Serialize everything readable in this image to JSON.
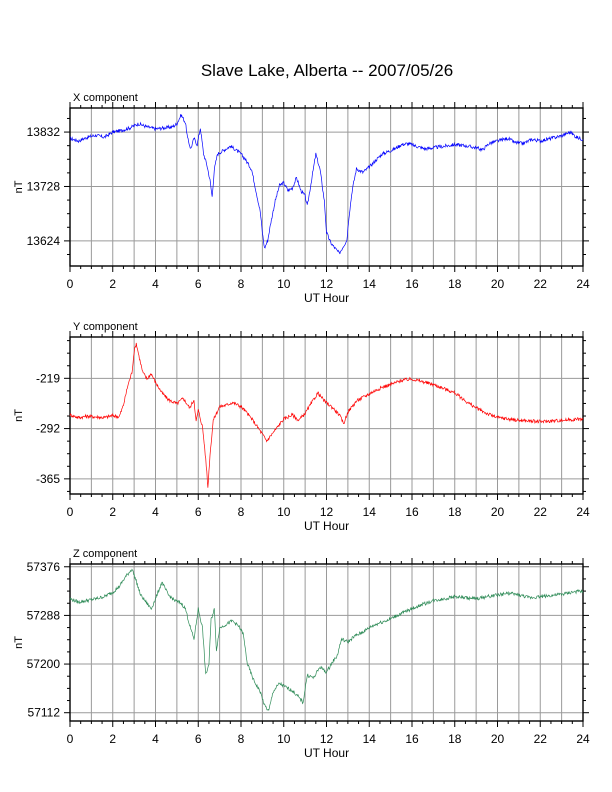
{
  "title": "Slave Lake, Alberta -- 2007/05/26",
  "chart_data": [
    {
      "type": "line",
      "subtitle": "X component",
      "xlabel": "UT Hour",
      "ylabel": "nT",
      "color": "#0000ff",
      "xlim": [
        0,
        24
      ],
      "ylim": [
        13576,
        13878
      ],
      "xticks": [
        0,
        2,
        4,
        6,
        8,
        10,
        12,
        14,
        16,
        18,
        20,
        22,
        24
      ],
      "yticks": [
        13624,
        13728,
        13832
      ],
      "grid": true,
      "points": [
        [
          0,
          13820
        ],
        [
          0.4,
          13815
        ],
        [
          0.8,
          13822
        ],
        [
          1.2,
          13826
        ],
        [
          1.6,
          13822
        ],
        [
          2.0,
          13832
        ],
        [
          2.4,
          13835
        ],
        [
          2.8,
          13840
        ],
        [
          3.2,
          13848
        ],
        [
          3.6,
          13842
        ],
        [
          4.0,
          13838
        ],
        [
          4.4,
          13840
        ],
        [
          4.8,
          13842
        ],
        [
          5.0,
          13848
        ],
        [
          5.2,
          13865
        ],
        [
          5.4,
          13850
        ],
        [
          5.5,
          13820
        ],
        [
          5.65,
          13800
        ],
        [
          5.8,
          13820
        ],
        [
          5.95,
          13808
        ],
        [
          6.1,
          13840
        ],
        [
          6.25,
          13790
        ],
        [
          6.4,
          13770
        ],
        [
          6.55,
          13740
        ],
        [
          6.65,
          13708
        ],
        [
          6.75,
          13760
        ],
        [
          6.9,
          13790
        ],
        [
          7.1,
          13795
        ],
        [
          7.3,
          13800
        ],
        [
          7.5,
          13805
        ],
        [
          7.7,
          13800
        ],
        [
          8.0,
          13790
        ],
        [
          8.2,
          13780
        ],
        [
          8.5,
          13760
        ],
        [
          8.7,
          13720
        ],
        [
          8.9,
          13680
        ],
        [
          9.0,
          13640
        ],
        [
          9.1,
          13610
        ],
        [
          9.25,
          13625
        ],
        [
          9.4,
          13660
        ],
        [
          9.6,
          13700
        ],
        [
          9.8,
          13730
        ],
        [
          10.0,
          13735
        ],
        [
          10.2,
          13720
        ],
        [
          10.4,
          13725
        ],
        [
          10.6,
          13745
        ],
        [
          10.8,
          13720
        ],
        [
          11.0,
          13710
        ],
        [
          11.1,
          13690
        ],
        [
          11.3,
          13740
        ],
        [
          11.5,
          13790
        ],
        [
          11.7,
          13760
        ],
        [
          11.9,
          13700
        ],
        [
          12.0,
          13640
        ],
        [
          12.2,
          13620
        ],
        [
          12.4,
          13610
        ],
        [
          12.6,
          13600
        ],
        [
          12.8,
          13615
        ],
        [
          12.95,
          13625
        ],
        [
          13.05,
          13670
        ],
        [
          13.2,
          13720
        ],
        [
          13.4,
          13762
        ],
        [
          13.7,
          13755
        ],
        [
          14.0,
          13765
        ],
        [
          14.3,
          13778
        ],
        [
          14.6,
          13790
        ],
        [
          14.9,
          13795
        ],
        [
          15.2,
          13800
        ],
        [
          15.5,
          13808
        ],
        [
          15.8,
          13810
        ],
        [
          16.2,
          13805
        ],
        [
          16.6,
          13800
        ],
        [
          17.0,
          13802
        ],
        [
          17.5,
          13805
        ],
        [
          18.0,
          13808
        ],
        [
          18.5,
          13806
        ],
        [
          19.0,
          13802
        ],
        [
          19.3,
          13798
        ],
        [
          19.6,
          13810
        ],
        [
          20.0,
          13815
        ],
        [
          20.5,
          13820
        ],
        [
          20.8,
          13812
        ],
        [
          21.2,
          13810
        ],
        [
          21.6,
          13818
        ],
        [
          22.0,
          13815
        ],
        [
          22.5,
          13820
        ],
        [
          23.0,
          13825
        ],
        [
          23.4,
          13832
        ],
        [
          23.7,
          13822
        ],
        [
          24.0,
          13818
        ]
      ]
    },
    {
      "type": "line",
      "subtitle": "Y component",
      "xlabel": "UT Hour",
      "ylabel": "nT",
      "color": "#ff0000",
      "xlim": [
        0,
        24
      ],
      "ylim": [
        -387,
        -159
      ],
      "xticks": [
        0,
        2,
        4,
        6,
        8,
        10,
        12,
        14,
        16,
        18,
        20,
        22,
        24
      ],
      "yticks": [
        -365,
        -292,
        -219
      ],
      "grid": true,
      "points": [
        [
          0,
          -272
        ],
        [
          0.4,
          -276
        ],
        [
          0.8,
          -274
        ],
        [
          1.2,
          -275
        ],
        [
          1.6,
          -276
        ],
        [
          2.0,
          -273
        ],
        [
          2.3,
          -275
        ],
        [
          2.5,
          -258
        ],
        [
          2.7,
          -230
        ],
        [
          2.9,
          -210
        ],
        [
          3.0,
          -180
        ],
        [
          3.1,
          -168
        ],
        [
          3.25,
          -190
        ],
        [
          3.4,
          -210
        ],
        [
          3.6,
          -220
        ],
        [
          3.8,
          -212
        ],
        [
          4.0,
          -225
        ],
        [
          4.3,
          -240
        ],
        [
          4.6,
          -250
        ],
        [
          5.0,
          -256
        ],
        [
          5.3,
          -248
        ],
        [
          5.6,
          -262
        ],
        [
          5.8,
          -250
        ],
        [
          5.9,
          -282
        ],
        [
          6.0,
          -265
        ],
        [
          6.2,
          -290
        ],
        [
          6.3,
          -320
        ],
        [
          6.4,
          -355
        ],
        [
          6.45,
          -378
        ],
        [
          6.55,
          -330
        ],
        [
          6.7,
          -280
        ],
        [
          7.0,
          -260
        ],
        [
          7.3,
          -258
        ],
        [
          7.6,
          -254
        ],
        [
          8.0,
          -260
        ],
        [
          8.3,
          -270
        ],
        [
          8.6,
          -282
        ],
        [
          9.0,
          -300
        ],
        [
          9.2,
          -310
        ],
        [
          9.4,
          -302
        ],
        [
          9.7,
          -290
        ],
        [
          10.0,
          -278
        ],
        [
          10.4,
          -272
        ],
        [
          10.7,
          -280
        ],
        [
          11.0,
          -270
        ],
        [
          11.3,
          -255
        ],
        [
          11.6,
          -240
        ],
        [
          11.9,
          -252
        ],
        [
          12.3,
          -262
        ],
        [
          12.6,
          -272
        ],
        [
          12.8,
          -285
        ],
        [
          13.0,
          -268
        ],
        [
          13.4,
          -252
        ],
        [
          13.8,
          -245
        ],
        [
          14.2,
          -238
        ],
        [
          14.6,
          -232
        ],
        [
          15.0,
          -228
        ],
        [
          15.5,
          -222
        ],
        [
          16.0,
          -220
        ],
        [
          16.5,
          -224
        ],
        [
          17.0,
          -228
        ],
        [
          17.5,
          -234
        ],
        [
          18.0,
          -240
        ],
        [
          18.5,
          -252
        ],
        [
          19.0,
          -262
        ],
        [
          19.5,
          -270
        ],
        [
          20.0,
          -276
        ],
        [
          21.0,
          -280
        ],
        [
          22.0,
          -282
        ],
        [
          23.0,
          -280
        ],
        [
          24.0,
          -278
        ]
      ]
    },
    {
      "type": "line",
      "subtitle": "Z component",
      "xlabel": "UT Hour",
      "ylabel": "nT",
      "color": "#2e8b57",
      "xlim": [
        0,
        24
      ],
      "ylim": [
        57097,
        57381
      ],
      "xticks": [
        0,
        2,
        4,
        6,
        8,
        10,
        12,
        14,
        16,
        18,
        20,
        22,
        24
      ],
      "yticks": [
        57112,
        57200,
        57288,
        57376
      ],
      "grid": true,
      "points": [
        [
          0,
          57318
        ],
        [
          0.4,
          57312
        ],
        [
          0.8,
          57315
        ],
        [
          1.2,
          57318
        ],
        [
          1.6,
          57322
        ],
        [
          2.0,
          57330
        ],
        [
          2.3,
          57340
        ],
        [
          2.6,
          57358
        ],
        [
          2.9,
          57372
        ],
        [
          3.1,
          57350
        ],
        [
          3.3,
          57325
        ],
        [
          3.6,
          57310
        ],
        [
          3.8,
          57300
        ],
        [
          4.0,
          57318
        ],
        [
          4.3,
          57348
        ],
        [
          4.6,
          57325
        ],
        [
          4.9,
          57315
        ],
        [
          5.2,
          57310
        ],
        [
          5.4,
          57300
        ],
        [
          5.6,
          57270
        ],
        [
          5.8,
          57245
        ],
        [
          6.0,
          57300
        ],
        [
          6.2,
          57265
        ],
        [
          6.35,
          57180
        ],
        [
          6.5,
          57200
        ],
        [
          6.6,
          57280
        ],
        [
          6.75,
          57300
        ],
        [
          6.85,
          57225
        ],
        [
          7.0,
          57265
        ],
        [
          7.3,
          57272
        ],
        [
          7.6,
          57278
        ],
        [
          7.9,
          57268
        ],
        [
          8.1,
          57255
        ],
        [
          8.3,
          57200
        ],
        [
          8.6,
          57170
        ],
        [
          8.9,
          57150
        ],
        [
          9.1,
          57125
        ],
        [
          9.3,
          57115
        ],
        [
          9.5,
          57150
        ],
        [
          9.8,
          57165
        ],
        [
          10.1,
          57158
        ],
        [
          10.4,
          57152
        ],
        [
          10.7,
          57140
        ],
        [
          10.9,
          57130
        ],
        [
          11.1,
          57180
        ],
        [
          11.4,
          57175
        ],
        [
          11.7,
          57195
        ],
        [
          12.0,
          57185
        ],
        [
          12.3,
          57205
        ],
        [
          12.5,
          57215
        ],
        [
          12.7,
          57245
        ],
        [
          13.0,
          57240
        ],
        [
          13.3,
          57250
        ],
        [
          13.7,
          57258
        ],
        [
          14.1,
          57268
        ],
        [
          14.5,
          57275
        ],
        [
          14.9,
          57280
        ],
        [
          15.3,
          57288
        ],
        [
          15.7,
          57295
        ],
        [
          16.1,
          57302
        ],
        [
          16.5,
          57308
        ],
        [
          17.0,
          57315
        ],
        [
          17.5,
          57318
        ],
        [
          18.0,
          57322
        ],
        [
          18.5,
          57320
        ],
        [
          19.0,
          57318
        ],
        [
          19.5,
          57322
        ],
        [
          20.0,
          57325
        ],
        [
          20.5,
          57328
        ],
        [
          21.0,
          57325
        ],
        [
          21.5,
          57320
        ],
        [
          22.0,
          57322
        ],
        [
          22.5,
          57324
        ],
        [
          23.0,
          57326
        ],
        [
          23.5,
          57330
        ],
        [
          24.0,
          57332
        ]
      ]
    }
  ]
}
